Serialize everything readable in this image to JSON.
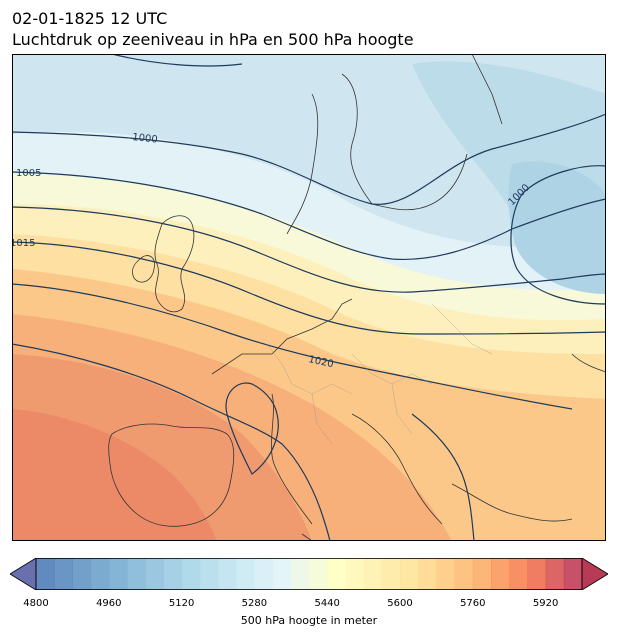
{
  "header": {
    "timestamp": "02-01-1825 12 UTC",
    "title": "Luchtdruk op zeeniveau in hPa en 500 hPa hoogte"
  },
  "map": {
    "region": "Europe",
    "isobar_labels": [
      "1000",
      "1005",
      "1015",
      "1020",
      "1000"
    ],
    "contour_color": "#1f3a5a",
    "coastline_color": "#333333"
  },
  "colorbar": {
    "label": "500 hPa hoogte in meter",
    "ticks": [
      "4800",
      "4960",
      "5120",
      "5280",
      "5440",
      "5600",
      "5760",
      "5920"
    ],
    "min": 4800,
    "max": 6000,
    "step": 40,
    "extend": "both",
    "colormap": "RdYlBu_r"
  }
}
